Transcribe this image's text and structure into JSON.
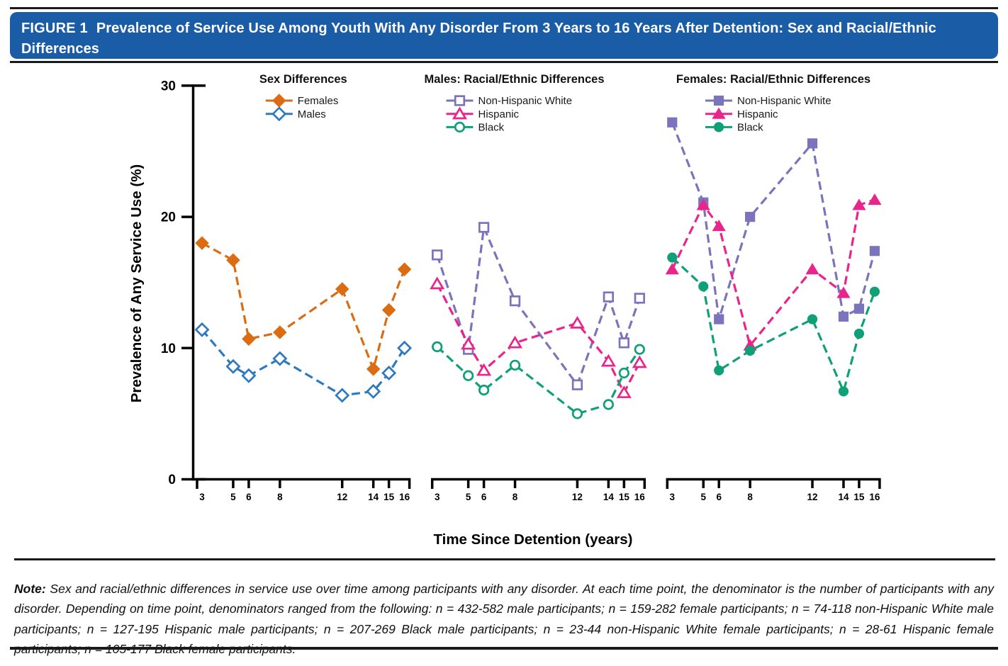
{
  "figure_header": {
    "label": "FIGURE 1",
    "title": "Prevalence of Service Use Among Youth With Any Disorder From 3 Years to 16 Years After Detention: Sex and Racial/Ethnic Differences"
  },
  "chart_data": {
    "type": "line",
    "xlabel": "Time Since Detention (years)",
    "ylabel": "Prevalence of Any Service Use (%)",
    "x_ticks": [
      3,
      5,
      6,
      8,
      12,
      14,
      15,
      16
    ],
    "y_ticks": [
      0,
      10,
      20,
      30
    ],
    "ylim": [
      0,
      30
    ],
    "grid": false,
    "legend_position": "top",
    "panels": [
      {
        "title": "Sex Differences",
        "series": [
          {
            "name": "Females",
            "marker": "diamond",
            "fill": "solid",
            "color": "#DB6C12",
            "values": [
              18.0,
              16.7,
              10.7,
              11.2,
              14.5,
              8.4,
              12.9,
              16.0
            ]
          },
          {
            "name": "Males",
            "marker": "diamond",
            "fill": "open",
            "color": "#2F7ABF",
            "values": [
              11.4,
              8.6,
              7.9,
              9.2,
              6.4,
              6.7,
              8.1,
              10.0
            ]
          }
        ]
      },
      {
        "title": "Males: Racial/Ethnic Differences",
        "series": [
          {
            "name": "Non-Hispanic White",
            "marker": "square",
            "fill": "open",
            "color": "#7B74BD",
            "values": [
              17.1,
              9.9,
              19.2,
              13.6,
              7.2,
              13.9,
              10.4,
              13.8
            ]
          },
          {
            "name": "Hispanic",
            "marker": "triangle",
            "fill": "open",
            "color": "#E9258C",
            "values": [
              14.9,
              10.3,
              8.3,
              10.4,
              11.9,
              9.0,
              6.6,
              8.9
            ]
          },
          {
            "name": "Black",
            "marker": "circle",
            "fill": "open",
            "color": "#10A077",
            "values": [
              10.1,
              7.9,
              6.8,
              8.7,
              5.0,
              5.7,
              8.1,
              9.9
            ]
          }
        ]
      },
      {
        "title": "Females: Racial/Ethnic Differences",
        "series": [
          {
            "name": "Non-Hispanic White",
            "marker": "square",
            "fill": "solid",
            "color": "#7B74BD",
            "values": [
              27.2,
              21.1,
              12.2,
              20.0,
              25.6,
              12.4,
              13.0,
              17.4
            ]
          },
          {
            "name": "Hispanic",
            "marker": "triangle",
            "fill": "solid",
            "color": "#E9258C",
            "values": [
              16.0,
              20.9,
              19.3,
              10.2,
              16.0,
              14.2,
              20.9,
              21.3
            ]
          },
          {
            "name": "Black",
            "marker": "circle",
            "fill": "solid",
            "color": "#10A077",
            "values": [
              16.9,
              14.7,
              8.3,
              9.8,
              12.2,
              6.7,
              11.1,
              14.3
            ]
          }
        ]
      }
    ]
  },
  "note": {
    "label": "Note:",
    "text": " Sex and racial/ethnic differences in service use over time among participants with any disorder. At each time point, the denominator is the number of participants with any disorder. Depending on time point, denominators ranged from the following: n = 432-582 male participants; n = 159-282 female participants; n = 74-118 non-Hispanic White male participants; n = 127-195 Hispanic male participants; n = 207-269 Black male participants; n = 23-44 non-Hispanic White female participants; n = 28-61 Hispanic female participants; n = 105-177 Black female participants."
  },
  "colors": {
    "header_bg": "#1B5CA7",
    "females_orange": "#DB6C12",
    "males_blue": "#2F7ABF",
    "non_hispanic_white_purple": "#7B74BD",
    "hispanic_pink": "#E9258C",
    "black_green": "#10A077",
    "axis_black": "#000000"
  }
}
